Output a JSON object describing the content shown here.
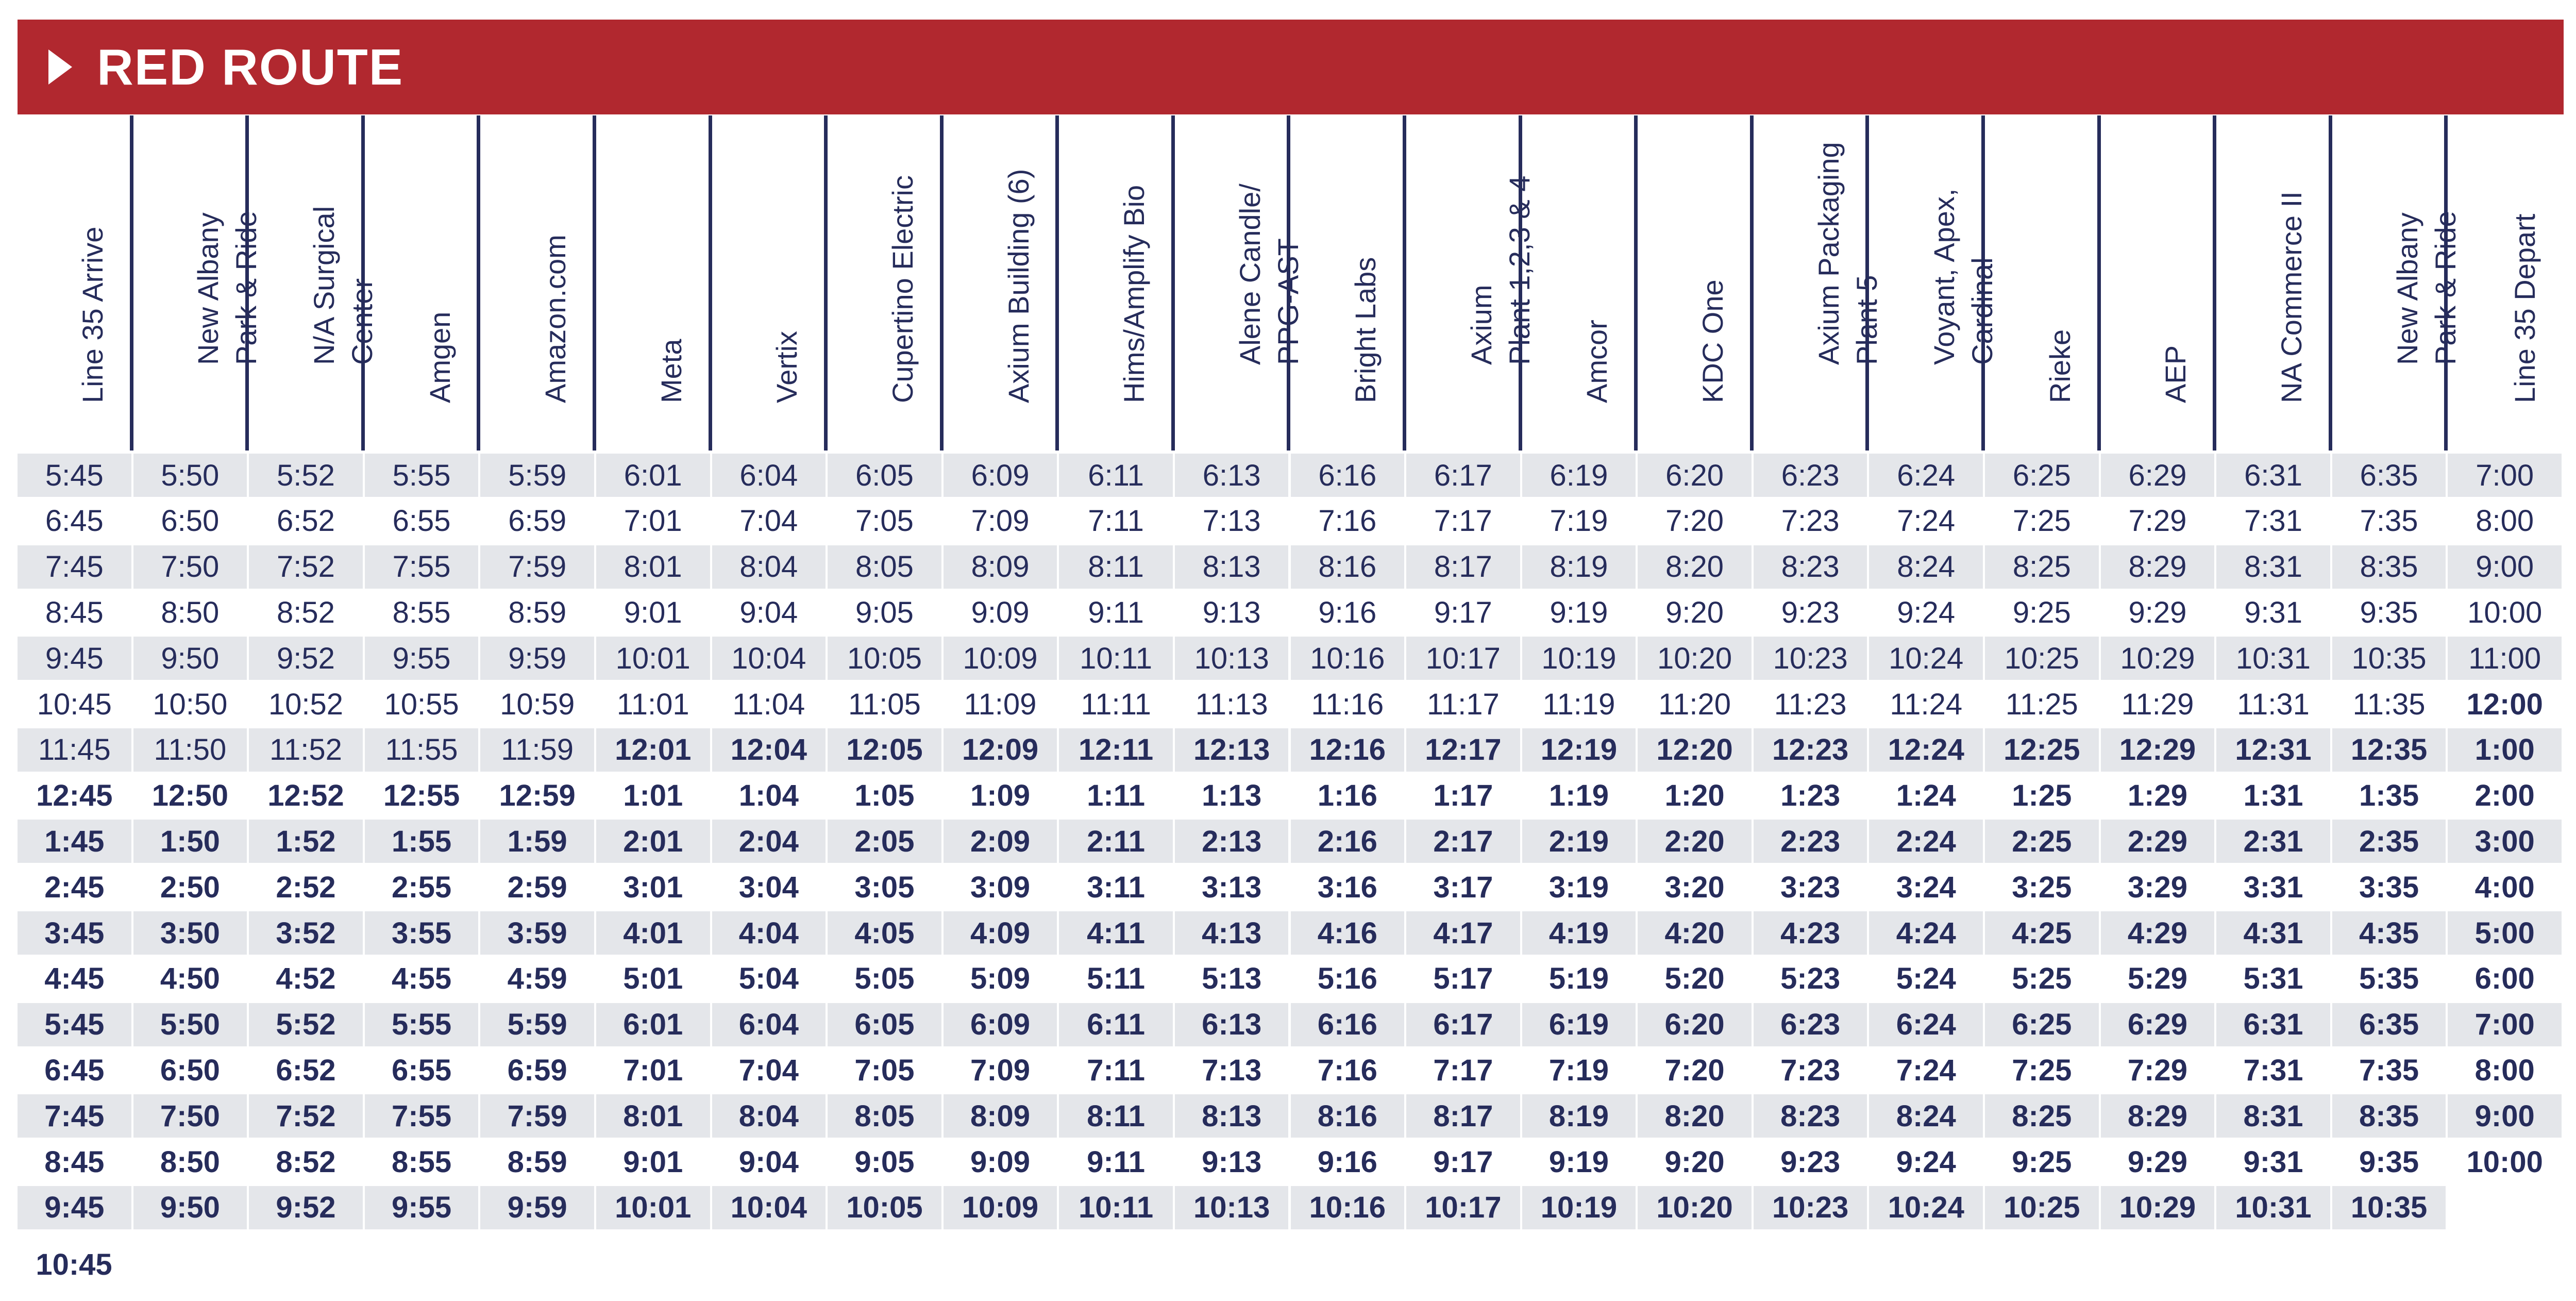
{
  "title": "RED ROUTE",
  "colors": {
    "banner": "#b1282f",
    "text": "#262c5b",
    "stripe": "#e4e6ea"
  },
  "stops": [
    "Line 35 Arrive",
    "New Albany\nPark & Ride",
    "N/A Surgical\nCenter",
    "Amgen",
    "Amazon.com",
    "Meta",
    "Vertix",
    "Cupertino Electric",
    "Axium Building (6)",
    "Hims/Amplify Bio",
    "Alene Candle/\nPPG-AST",
    "Bright Labs",
    "Axium\nPlant 1,2,3 & 4",
    "Amcor",
    "KDC One",
    "Axium Packaging\nPlant 5",
    "Voyant, Apex,\nCardinal",
    "Rieke",
    "AEP",
    "NA Commerce II",
    "New Albany\nPark & Ride",
    "Line 35 Depart"
  ],
  "rows": [
    [
      "5:45",
      "5:50",
      "5:52",
      "5:55",
      "5:59",
      "6:01",
      "6:04",
      "6:05",
      "6:09",
      "6:11",
      "6:13",
      "6:16",
      "6:17",
      "6:19",
      "6:20",
      "6:23",
      "6:24",
      "6:25",
      "6:29",
      "6:31",
      "6:35",
      "7:00"
    ],
    [
      "6:45",
      "6:50",
      "6:52",
      "6:55",
      "6:59",
      "7:01",
      "7:04",
      "7:05",
      "7:09",
      "7:11",
      "7:13",
      "7:16",
      "7:17",
      "7:19",
      "7:20",
      "7:23",
      "7:24",
      "7:25",
      "7:29",
      "7:31",
      "7:35",
      "8:00"
    ],
    [
      "7:45",
      "7:50",
      "7:52",
      "7:55",
      "7:59",
      "8:01",
      "8:04",
      "8:05",
      "8:09",
      "8:11",
      "8:13",
      "8:16",
      "8:17",
      "8:19",
      "8:20",
      "8:23",
      "8:24",
      "8:25",
      "8:29",
      "8:31",
      "8:35",
      "9:00"
    ],
    [
      "8:45",
      "8:50",
      "8:52",
      "8:55",
      "8:59",
      "9:01",
      "9:04",
      "9:05",
      "9:09",
      "9:11",
      "9:13",
      "9:16",
      "9:17",
      "9:19",
      "9:20",
      "9:23",
      "9:24",
      "9:25",
      "9:29",
      "9:31",
      "9:35",
      "10:00"
    ],
    [
      "9:45",
      "9:50",
      "9:52",
      "9:55",
      "9:59",
      "10:01",
      "10:04",
      "10:05",
      "10:09",
      "10:11",
      "10:13",
      "10:16",
      "10:17",
      "10:19",
      "10:20",
      "10:23",
      "10:24",
      "10:25",
      "10:29",
      "10:31",
      "10:35",
      "11:00"
    ],
    [
      "10:45",
      "10:50",
      "10:52",
      "10:55",
      "10:59",
      "11:01",
      "11:04",
      "11:05",
      "11:09",
      "11:11",
      "11:13",
      "11:16",
      "11:17",
      "11:19",
      "11:20",
      "11:23",
      "11:24",
      "11:25",
      "11:29",
      "11:31",
      "11:35",
      "12:00"
    ],
    [
      "11:45",
      "11:50",
      "11:52",
      "11:55",
      "11:59",
      "12:01",
      "12:04",
      "12:05",
      "12:09",
      "12:11",
      "12:13",
      "12:16",
      "12:17",
      "12:19",
      "12:20",
      "12:23",
      "12:24",
      "12:25",
      "12:29",
      "12:31",
      "12:35",
      "1:00"
    ],
    [
      "12:45",
      "12:50",
      "12:52",
      "12:55",
      "12:59",
      "1:01",
      "1:04",
      "1:05",
      "1:09",
      "1:11",
      "1:13",
      "1:16",
      "1:17",
      "1:19",
      "1:20",
      "1:23",
      "1:24",
      "1:25",
      "1:29",
      "1:31",
      "1:35",
      "2:00"
    ],
    [
      "1:45",
      "1:50",
      "1:52",
      "1:55",
      "1:59",
      "2:01",
      "2:04",
      "2:05",
      "2:09",
      "2:11",
      "2:13",
      "2:16",
      "2:17",
      "2:19",
      "2:20",
      "2:23",
      "2:24",
      "2:25",
      "2:29",
      "2:31",
      "2:35",
      "3:00"
    ],
    [
      "2:45",
      "2:50",
      "2:52",
      "2:55",
      "2:59",
      "3:01",
      "3:04",
      "3:05",
      "3:09",
      "3:11",
      "3:13",
      "3:16",
      "3:17",
      "3:19",
      "3:20",
      "3:23",
      "3:24",
      "3:25",
      "3:29",
      "3:31",
      "3:35",
      "4:00"
    ],
    [
      "3:45",
      "3:50",
      "3:52",
      "3:55",
      "3:59",
      "4:01",
      "4:04",
      "4:05",
      "4:09",
      "4:11",
      "4:13",
      "4:16",
      "4:17",
      "4:19",
      "4:20",
      "4:23",
      "4:24",
      "4:25",
      "4:29",
      "4:31",
      "4:35",
      "5:00"
    ],
    [
      "4:45",
      "4:50",
      "4:52",
      "4:55",
      "4:59",
      "5:01",
      "5:04",
      "5:05",
      "5:09",
      "5:11",
      "5:13",
      "5:16",
      "5:17",
      "5:19",
      "5:20",
      "5:23",
      "5:24",
      "5:25",
      "5:29",
      "5:31",
      "5:35",
      "6:00"
    ],
    [
      "5:45",
      "5:50",
      "5:52",
      "5:55",
      "5:59",
      "6:01",
      "6:04",
      "6:05",
      "6:09",
      "6:11",
      "6:13",
      "6:16",
      "6:17",
      "6:19",
      "6:20",
      "6:23",
      "6:24",
      "6:25",
      "6:29",
      "6:31",
      "6:35",
      "7:00"
    ],
    [
      "6:45",
      "6:50",
      "6:52",
      "6:55",
      "6:59",
      "7:01",
      "7:04",
      "7:05",
      "7:09",
      "7:11",
      "7:13",
      "7:16",
      "7:17",
      "7:19",
      "7:20",
      "7:23",
      "7:24",
      "7:25",
      "7:29",
      "7:31",
      "7:35",
      "8:00"
    ],
    [
      "7:45",
      "7:50",
      "7:52",
      "7:55",
      "7:59",
      "8:01",
      "8:04",
      "8:05",
      "8:09",
      "8:11",
      "8:13",
      "8:16",
      "8:17",
      "8:19",
      "8:20",
      "8:23",
      "8:24",
      "8:25",
      "8:29",
      "8:31",
      "8:35",
      "9:00"
    ],
    [
      "8:45",
      "8:50",
      "8:52",
      "8:55",
      "8:59",
      "9:01",
      "9:04",
      "9:05",
      "9:09",
      "9:11",
      "9:13",
      "9:16",
      "9:17",
      "9:19",
      "9:20",
      "9:23",
      "9:24",
      "9:25",
      "9:29",
      "9:31",
      "9:35",
      "10:00"
    ],
    [
      "9:45",
      "9:50",
      "9:52",
      "9:55",
      "9:59",
      "10:01",
      "10:04",
      "10:05",
      "10:09",
      "10:11",
      "10:13",
      "10:16",
      "10:17",
      "10:19",
      "10:20",
      "10:23",
      "10:24",
      "10:25",
      "10:29",
      "10:31",
      "10:35",
      ""
    ]
  ],
  "extra_time": "10:45",
  "bold": {
    "note": "",
    "first_bold_row": [
      7,
      7,
      7,
      7,
      7,
      6,
      6,
      6,
      6,
      6,
      6,
      6,
      6,
      6,
      6,
      6,
      6,
      6,
      6,
      6,
      6,
      5
    ]
  }
}
